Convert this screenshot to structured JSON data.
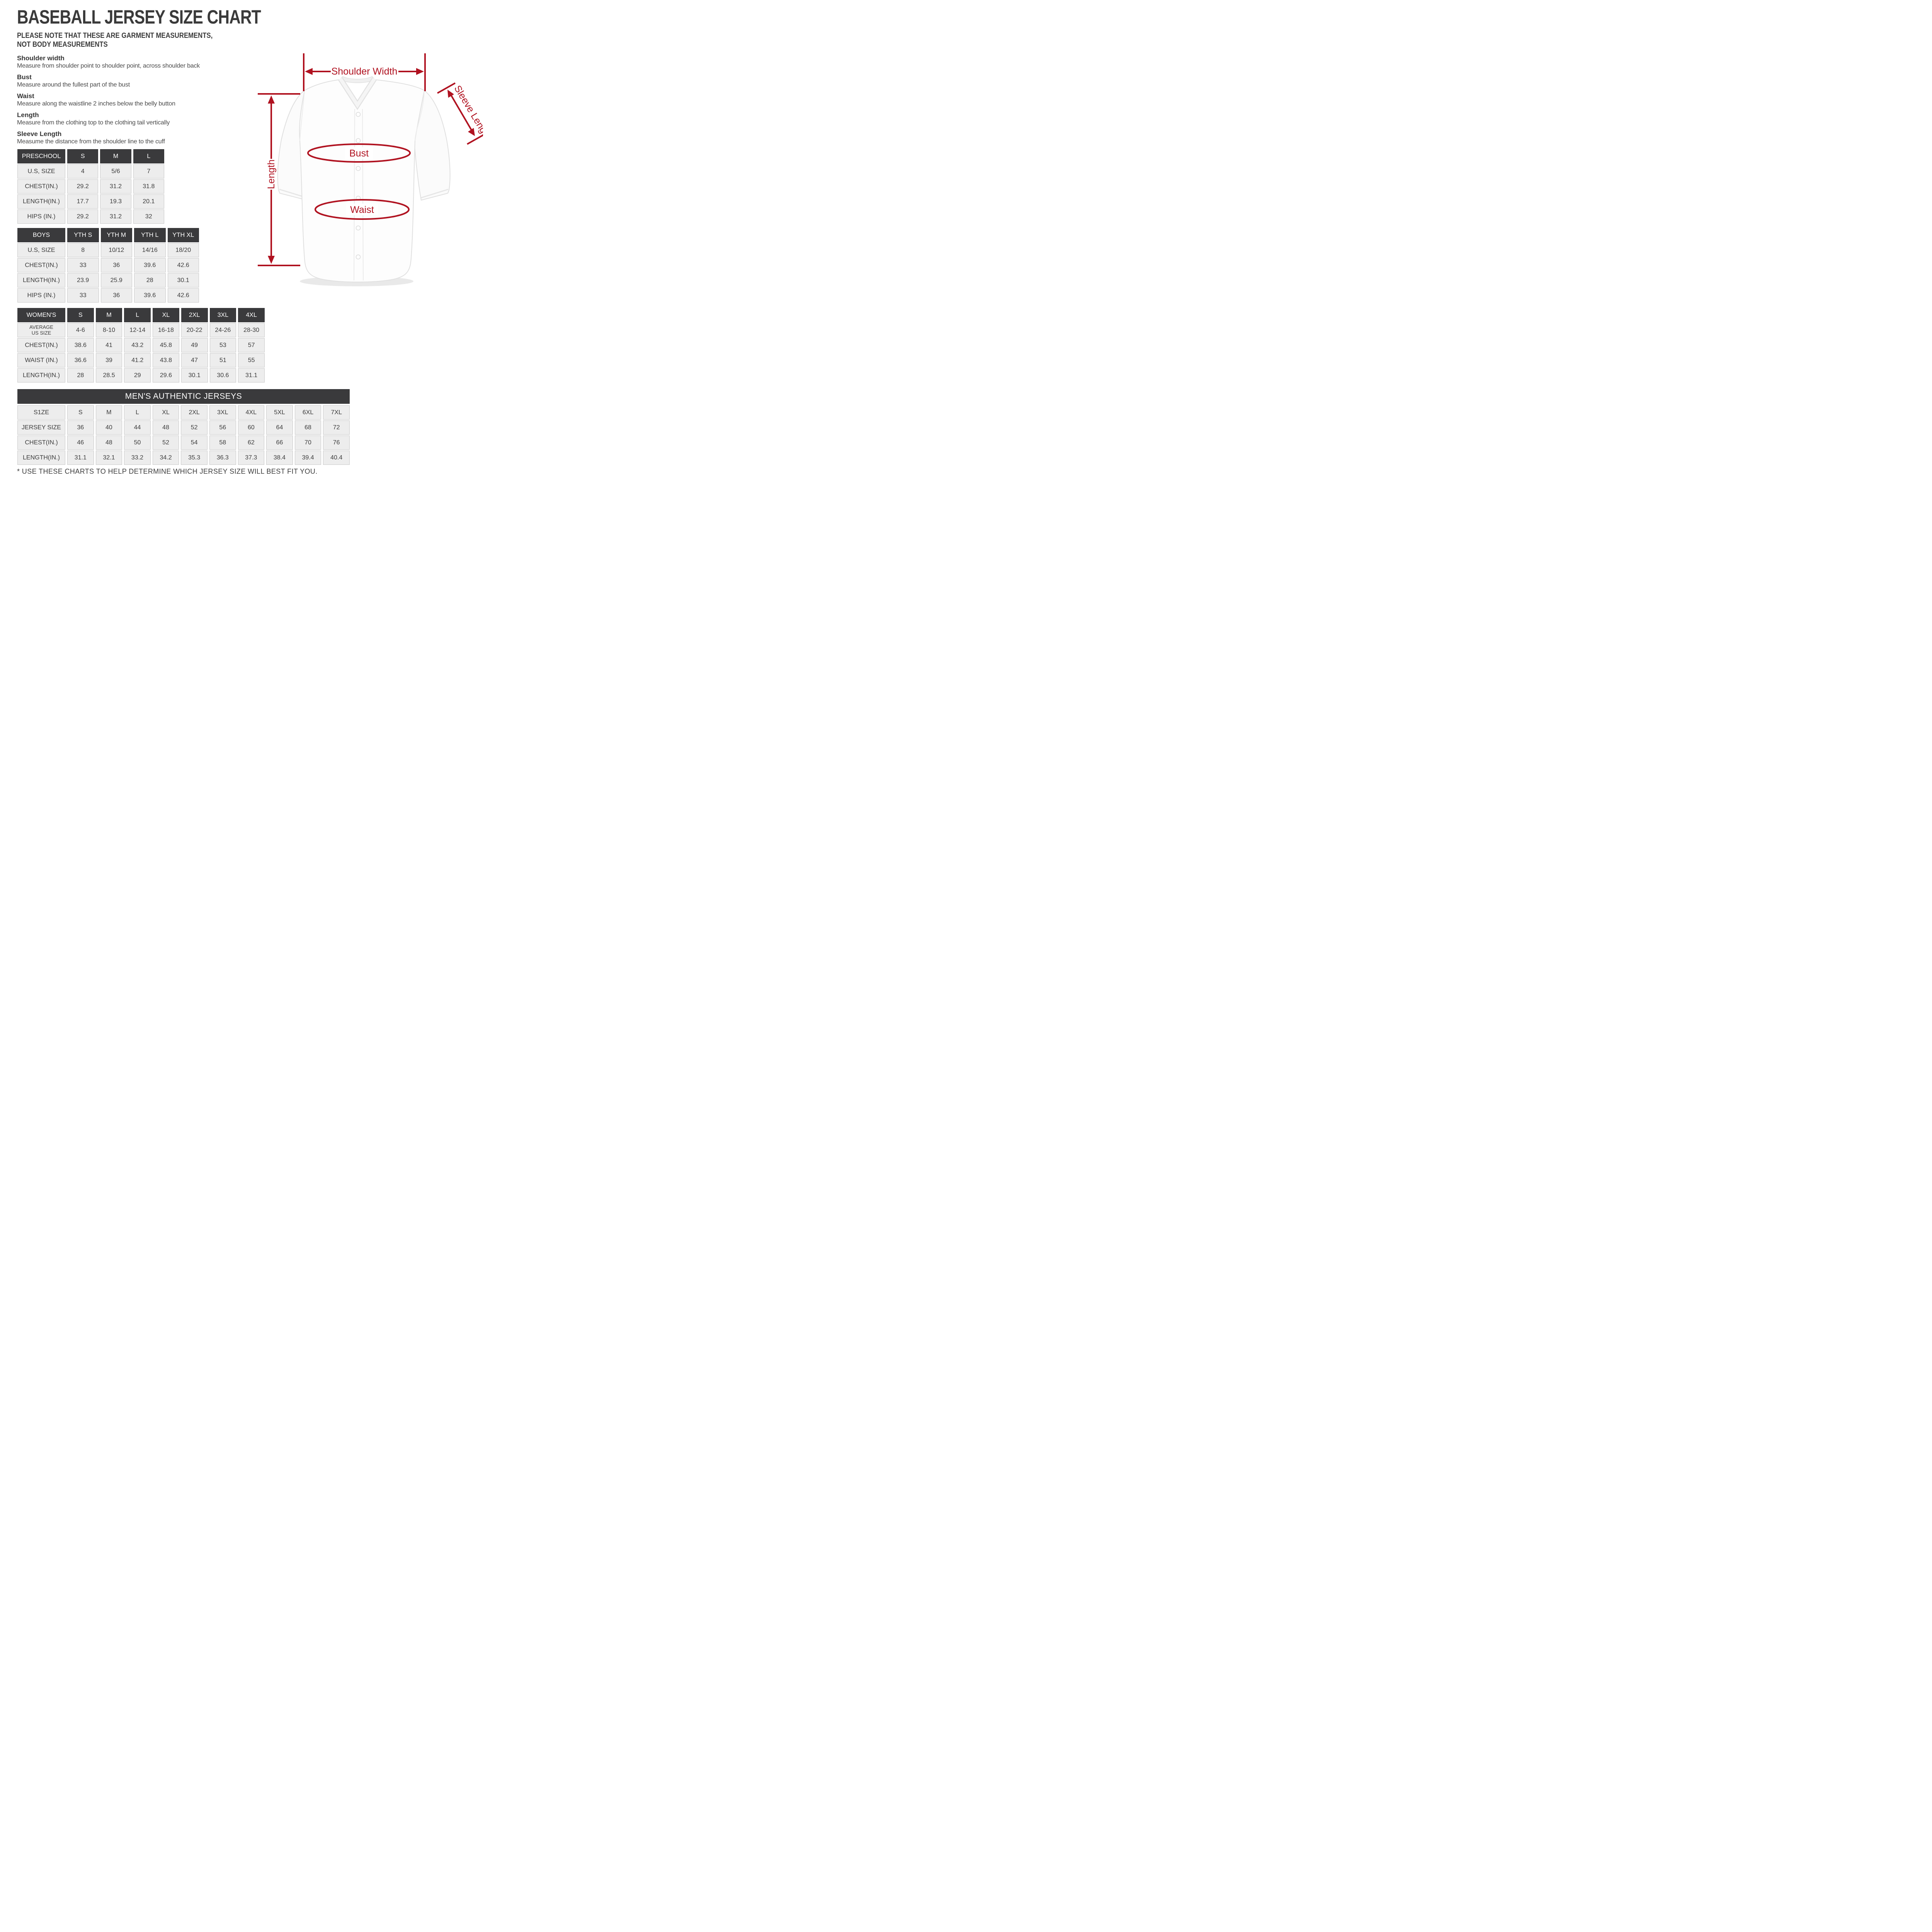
{
  "page": {
    "title": "BASEBALL JERSEY SIZE CHART",
    "subtitle_line1": "PLEASE NOTE THAT THESE ARE GARMENT MEASUREMENTS,",
    "subtitle_line2": "NOT BODY MEASUREMENTS",
    "footnote": "* USE THESE CHARTS TO HELP DETERMINE WHICH JERSEY SIZE WILL BEST FIT YOU."
  },
  "definitions": [
    {
      "term": "Shoulder width",
      "description": "Measure from shoulder point to shoulder point, across shoulder back"
    },
    {
      "term": "Bust",
      "description": "Measure around the fullest part of the bust"
    },
    {
      "term": "Waist",
      "description": "Measure along the waistline 2 inches below the belly button"
    },
    {
      "term": "Length",
      "description": "Measure from the clothing top to the clothing tail vertically"
    },
    {
      "term": "Sleeve Length",
      "description": "Measume the distance from the shoulder line to the cuff"
    }
  ],
  "diagram": {
    "annotation_color": "#b01220",
    "labels": {
      "shoulder_width": "Shoulder Width",
      "sleeve_length": "Sleeve Length",
      "bust": "Bust",
      "waist": "Waist",
      "length": "Length"
    }
  },
  "tables": {
    "preschool": {
      "header": [
        "PRESCHOOL",
        "S",
        "M",
        "L"
      ],
      "rows": [
        [
          "U.S,  SIZE",
          "4",
          "5/6",
          "7"
        ],
        [
          "CHEST(IN.)",
          "29.2",
          "31.2",
          "31.8"
        ],
        [
          "LENGTH(IN.)",
          "17.7",
          "19.3",
          "20.1"
        ],
        [
          "HIPS (IN.)",
          "29.2",
          "31.2",
          "32"
        ]
      ]
    },
    "boys": {
      "header": [
        "BOYS",
        "YTH S",
        "YTH M",
        "YTH L",
        "YTH XL"
      ],
      "rows": [
        [
          "U.S,  SIZE",
          "8",
          "10/12",
          "14/16",
          "18/20"
        ],
        [
          "CHEST(IN.)",
          "33",
          "36",
          "39.6",
          "42.6"
        ],
        [
          "LENGTH(IN.)",
          "23.9",
          "25.9",
          "28",
          "30.1"
        ],
        [
          "HIPS (IN.)",
          "33",
          "36",
          "39.6",
          "42.6"
        ]
      ]
    },
    "womens": {
      "header": [
        "WOMEN'S",
        "S",
        "M",
        "L",
        "XL",
        "2XL",
        "3XL",
        "4XL"
      ],
      "rows": [
        [
          "AVERAGE\nUS SIZE",
          "4-6",
          "8-10",
          "12-14",
          "16-18",
          "20-22",
          "24-26",
          "28-30"
        ],
        [
          "CHEST(IN.)",
          "38.6",
          "41",
          "43.2",
          "45.8",
          "49",
          "53",
          "57"
        ],
        [
          "WAIST (IN.)",
          "36.6",
          "39",
          "41.2",
          "43.8",
          "47",
          "51",
          "55"
        ],
        [
          "LENGTH(IN.)",
          "28",
          "28.5",
          "29",
          "29.6",
          "30.1",
          "30.6",
          "31.1"
        ]
      ]
    },
    "mens": {
      "title": "MEN'S AUTHENTIC JERSEYS",
      "rows": [
        [
          "S1ZE",
          "S",
          "M",
          "L",
          "XL",
          "2XL",
          "3XL",
          "4XL",
          "5XL",
          "6XL",
          "7XL"
        ],
        [
          "JERSEY SIZE",
          "36",
          "40",
          "44",
          "48",
          "52",
          "56",
          "60",
          "64",
          "68",
          "72"
        ],
        [
          "CHEST(IN.)",
          "46",
          "48",
          "50",
          "52",
          "54",
          "58",
          "62",
          "66",
          "70",
          "76"
        ],
        [
          "LENGTH(IN.)",
          "31.1",
          "32.1",
          "33.2",
          "34.2",
          "35.3",
          "36.3",
          "37.3",
          "38.4",
          "39.4",
          "40.4"
        ]
      ]
    }
  }
}
